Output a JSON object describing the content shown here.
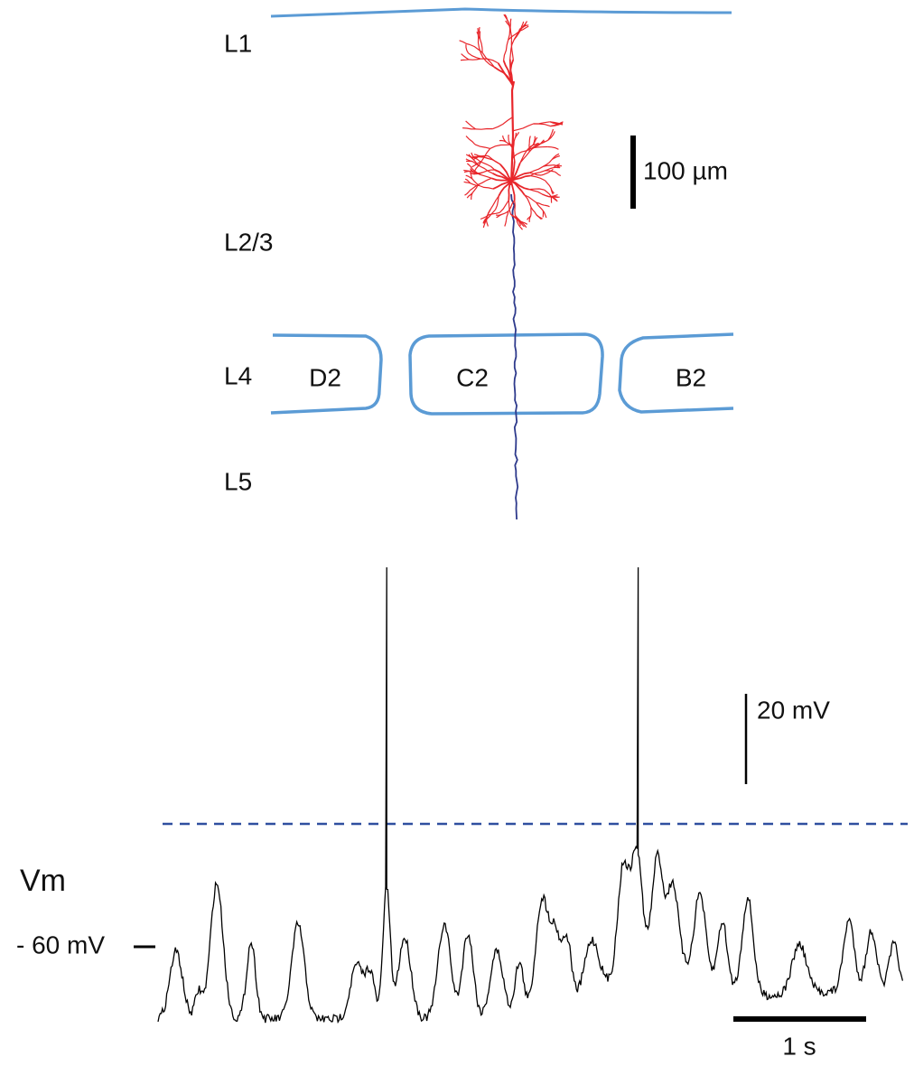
{
  "layers": [
    "L1",
    "L2/3",
    "L4",
    "L5"
  ],
  "barrels": [
    "D2",
    "C2",
    "B2"
  ],
  "scale_bars": {
    "length": "100 µm",
    "voltage": "20 mV",
    "time": "1 s"
  },
  "trace": {
    "label": "Vm",
    "level": "- 60 mV"
  }
}
